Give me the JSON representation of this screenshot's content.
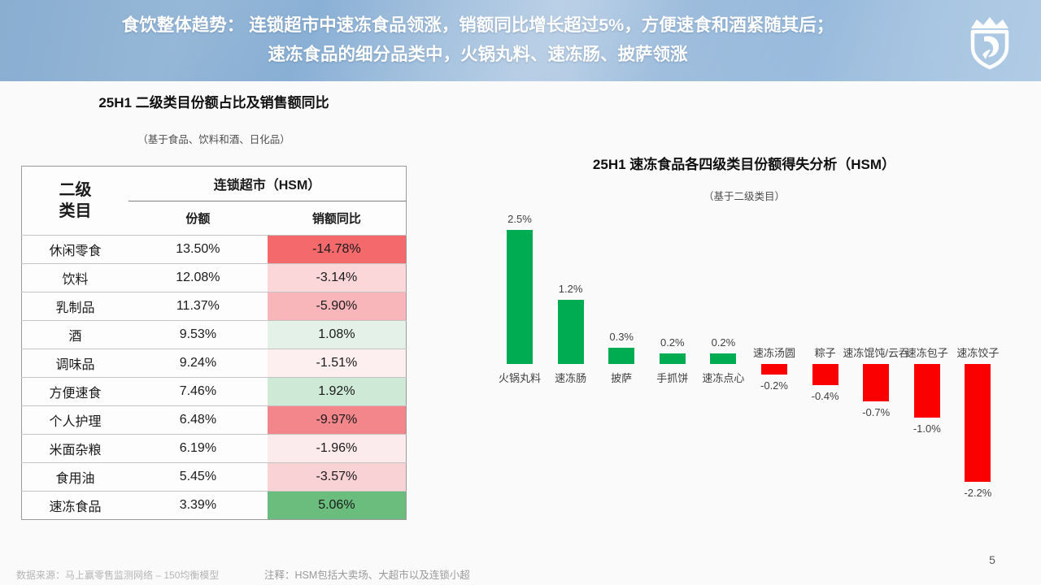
{
  "banner": {
    "line1": "食饮整体趋势： 连锁超市中速冻食品领涨，销额同比增长超过5%，方便速食和酒紧随其后；",
    "line2": "速冻食品的细分品类中，火锅丸料、速冻肠、披萨领涨"
  },
  "left_chart": {
    "title": "25H1 二级类目份额占比及销售额同比",
    "subtitle": "（基于食品、饮料和酒、日化品）"
  },
  "table": {
    "col1_header_line1": "二级",
    "col1_header_line2": "类目",
    "group_header": "连锁超市（HSM）",
    "share_header": "份额",
    "yoy_header": "销额同比",
    "rows": [
      {
        "name": "休闲零食",
        "share": "13.50%",
        "yoy": "-14.78%",
        "yoy_bg": "#f4696c"
      },
      {
        "name": "饮料",
        "share": "12.08%",
        "yoy": "-3.14%",
        "yoy_bg": "#fbd7da"
      },
      {
        "name": "乳制品",
        "share": "11.37%",
        "yoy": "-5.90%",
        "yoy_bg": "#f8b6ba"
      },
      {
        "name": "酒",
        "share": "9.53%",
        "yoy": "1.08%",
        "yoy_bg": "#e4f1e8"
      },
      {
        "name": "调味品",
        "share": "9.24%",
        "yoy": "-1.51%",
        "yoy_bg": "#fdeef0"
      },
      {
        "name": "方便速食",
        "share": "7.46%",
        "yoy": "1.92%",
        "yoy_bg": "#cfe9d7"
      },
      {
        "name": "个人护理",
        "share": "6.48%",
        "yoy": "-9.97%",
        "yoy_bg": "#f3868b"
      },
      {
        "name": "米面杂粮",
        "share": "6.19%",
        "yoy": "-1.96%",
        "yoy_bg": "#fcebed"
      },
      {
        "name": "食用油",
        "share": "5.45%",
        "yoy": "-3.57%",
        "yoy_bg": "#f9d2d6"
      },
      {
        "name": "速冻食品",
        "share": "3.39%",
        "yoy": "5.06%",
        "yoy_bg": "#6abd7d"
      }
    ]
  },
  "chart_data": {
    "type": "bar",
    "title": "25H1 速冻食品各四级类目份额得失分析（HSM）",
    "subtitle": "（基于二级类目）",
    "categories": [
      "火锅丸料",
      "速冻肠",
      "披萨",
      "手抓饼",
      "速冻点心",
      "速冻汤圆",
      "粽子",
      "速冻馄饨/云吞",
      "速冻包子",
      "速冻饺子"
    ],
    "values": [
      2.5,
      1.2,
      0.3,
      0.2,
      0.2,
      -0.2,
      -0.4,
      -0.7,
      -1.0,
      -2.2
    ],
    "unit": "%",
    "ylim": [
      -2.5,
      3.0
    ],
    "grid": false,
    "legend": "none",
    "positive_color": "#00ac52",
    "negative_color": "#fb0000",
    "label_color": "#404040"
  },
  "footer": {
    "source": "数据来源：马上赢零售监测网络 – 150均衡模型",
    "note": "注释：HSM包括大卖场、大超市以及连锁小超",
    "page": "5"
  }
}
